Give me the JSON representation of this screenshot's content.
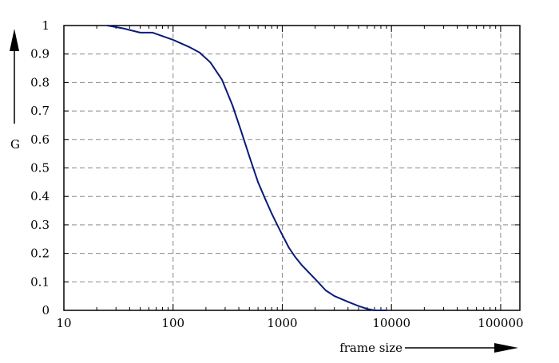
{
  "chart_data": {
    "type": "line",
    "title": "",
    "xlabel": "frame size",
    "ylabel": "G",
    "xscale": "log",
    "xlim": [
      10,
      150000
    ],
    "ylim": [
      0,
      1
    ],
    "grid": true,
    "x_ticks": [
      10,
      100,
      1000,
      10000,
      100000
    ],
    "x_tick_labels": [
      "10",
      "100",
      "1000",
      "10000",
      "100000"
    ],
    "y_ticks": [
      0,
      0.1,
      0.2,
      0.3,
      0.4,
      0.5,
      0.6,
      0.7,
      0.8,
      0.9,
      1
    ],
    "y_tick_labels": [
      "0",
      "0.1",
      "0.2",
      "0.3",
      "0.4",
      "0.5",
      "0.6",
      "0.7",
      "0.8",
      "0.9",
      "1"
    ],
    "series": [
      {
        "color": "#0a1a7a",
        "x": [
          25,
          35,
          50,
          65,
          100,
          140,
          175,
          220,
          280,
          350,
          420,
          500,
          600,
          700,
          800,
          900,
          1000,
          1150,
          1300,
          1500,
          2000,
          2500,
          3000,
          4000,
          5000,
          6000,
          7000,
          8000,
          9000
        ],
        "y": [
          1.0,
          0.99,
          0.975,
          0.975,
          0.95,
          0.925,
          0.905,
          0.87,
          0.81,
          0.72,
          0.63,
          0.54,
          0.45,
          0.39,
          0.34,
          0.3,
          0.265,
          0.22,
          0.19,
          0.16,
          0.11,
          0.07,
          0.05,
          0.03,
          0.015,
          0.005,
          0.0,
          0.0,
          0.0
        ]
      }
    ]
  }
}
